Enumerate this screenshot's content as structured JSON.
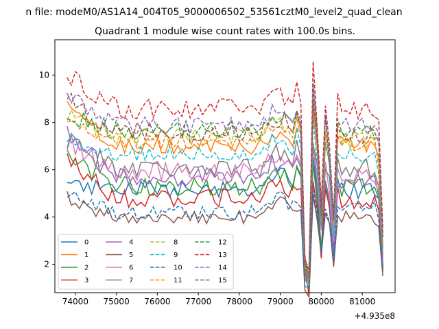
{
  "figure": {
    "suptitle": "n file: modeM0/AS1A14_004T05_9000006502_53561cztM0_level2_quad_clean",
    "title": "Quadrant 1 module wise count rates with 100.0s bins.",
    "x_offset_label": "+4.935e8"
  },
  "chart_data": {
    "type": "line",
    "title": "Quadrant 1 module wise count rates with 100.0s bins.",
    "xlabel": "",
    "ylabel": "",
    "x_offset": 493500000,
    "xlim": [
      73500,
      81800
    ],
    "ylim": [
      0.8,
      11.5
    ],
    "xticks": [
      74000,
      75000,
      76000,
      77000,
      78000,
      79000,
      80000,
      81000
    ],
    "xtick_labels": [
      "74000",
      "75000",
      "76000",
      "77000",
      "78000",
      "79000",
      "80000",
      "81000"
    ],
    "yticks": [
      2,
      4,
      6,
      8,
      10
    ],
    "ytick_labels": [
      "2",
      "4",
      "6",
      "8",
      "10"
    ],
    "x_start": 73800,
    "x_step": 100,
    "legend_position": "lower-left",
    "legend_columns": 4,
    "series": [
      {
        "name": "0",
        "color": "#1f77b4",
        "dash": "solid",
        "profile": {
          "start": 5.3,
          "mid": 5.2,
          "end": 5.1,
          "noise": 0.35
        }
      },
      {
        "name": "1",
        "color": "#ff7f0e",
        "dash": "solid",
        "profile": {
          "start": 8.7,
          "mid": 7.0,
          "end": 7.1,
          "noise": 0.35
        }
      },
      {
        "name": "2",
        "color": "#2ca02c",
        "dash": "solid",
        "profile": {
          "start": 6.6,
          "mid": 5.3,
          "end": 5.2,
          "noise": 0.4
        }
      },
      {
        "name": "3",
        "color": "#d62728",
        "dash": "solid",
        "profile": {
          "start": 6.4,
          "mid": 4.8,
          "end": 4.7,
          "noise": 0.4
        }
      },
      {
        "name": "4",
        "color": "#9467bd",
        "dash": "solid",
        "profile": {
          "start": 7.5,
          "mid": 5.7,
          "end": 5.4,
          "noise": 0.4
        }
      },
      {
        "name": "5",
        "color": "#8c564b",
        "dash": "solid",
        "profile": {
          "start": 4.8,
          "mid": 4.0,
          "end": 4.0,
          "noise": 0.3
        }
      },
      {
        "name": "6",
        "color": "#e377c2",
        "dash": "solid",
        "profile": {
          "start": 7.2,
          "mid": 5.9,
          "end": 5.7,
          "noise": 0.4
        }
      },
      {
        "name": "7",
        "color": "#7f7f7f",
        "dash": "solid",
        "profile": {
          "start": 7.3,
          "mid": 6.1,
          "end": 6.0,
          "noise": 0.45
        }
      },
      {
        "name": "8",
        "color": "#bcbd22",
        "dash": "dashed",
        "profile": {
          "start": 8.4,
          "mid": 7.4,
          "end": 7.2,
          "noise": 0.4
        }
      },
      {
        "name": "9",
        "color": "#17becf",
        "dash": "dashed",
        "profile": {
          "start": 7.4,
          "mid": 6.7,
          "end": 6.6,
          "noise": 0.35
        }
      },
      {
        "name": "10",
        "color": "#1f77b4",
        "dash": "dashed",
        "profile": {
          "start": 5.0,
          "mid": 4.2,
          "end": 4.5,
          "noise": 0.3
        }
      },
      {
        "name": "11",
        "color": "#ff7f0e",
        "dash": "dashed",
        "profile": {
          "start": 8.2,
          "mid": 7.2,
          "end": 7.0,
          "noise": 0.35
        }
      },
      {
        "name": "12",
        "color": "#2ca02c",
        "dash": "dashed",
        "profile": {
          "start": 8.3,
          "mid": 7.7,
          "end": 7.6,
          "noise": 0.4
        }
      },
      {
        "name": "13",
        "color": "#d62728",
        "dash": "dashed",
        "profile": {
          "start": 10.0,
          "mid": 8.6,
          "end": 8.4,
          "noise": 0.45
        }
      },
      {
        "name": "14",
        "color": "#9467bd",
        "dash": "dashed",
        "profile": {
          "start": 9.3,
          "mid": 7.9,
          "end": 7.9,
          "noise": 0.4
        }
      },
      {
        "name": "15",
        "color": "#8c564b",
        "dash": "dashed",
        "profile": {
          "start": 9.0,
          "mid": 7.6,
          "end": 7.5,
          "noise": 0.4
        }
      }
    ]
  }
}
